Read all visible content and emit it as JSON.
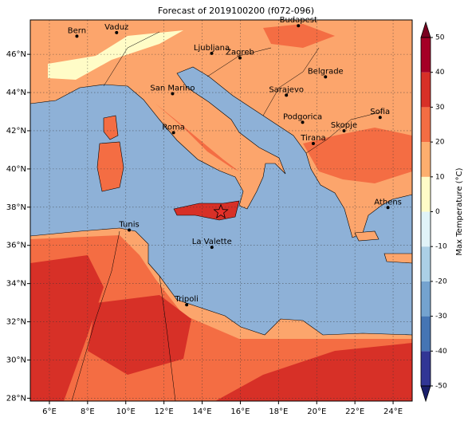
{
  "chart_data": {
    "type": "map",
    "title": "Forecast of 2019100200 (f072-096)",
    "xlim": [
      5,
      25
    ],
    "ylim": [
      27.85,
      47.8
    ],
    "xticks": [
      {
        "value": 6,
        "label": "6°E"
      },
      {
        "value": 8,
        "label": "8°E"
      },
      {
        "value": 10,
        "label": "10°E"
      },
      {
        "value": 12,
        "label": "12°E"
      },
      {
        "value": 14,
        "label": "14°E"
      },
      {
        "value": 16,
        "label": "16°E"
      },
      {
        "value": 18,
        "label": "18°E"
      },
      {
        "value": 20,
        "label": "20°E"
      },
      {
        "value": 22,
        "label": "22°E"
      },
      {
        "value": 24,
        "label": "24°E"
      }
    ],
    "yticks": [
      {
        "value": 28,
        "label": "28°N"
      },
      {
        "value": 30,
        "label": "30°N"
      },
      {
        "value": 32,
        "label": "32°N"
      },
      {
        "value": 34,
        "label": "34°N"
      },
      {
        "value": 36,
        "label": "36°N"
      },
      {
        "value": 38,
        "label": "38°N"
      },
      {
        "value": 40,
        "label": "40°N"
      },
      {
        "value": 42,
        "label": "42°N"
      },
      {
        "value": 44,
        "label": "44°N"
      },
      {
        "value": 46,
        "label": "46°N"
      }
    ],
    "grid": true,
    "cities": [
      {
        "name": "Bern",
        "lon": 7.44,
        "lat": 46.95
      },
      {
        "name": "Vaduz",
        "lon": 9.52,
        "lat": 47.14
      },
      {
        "name": "Budapest",
        "lon": 19.04,
        "lat": 47.5
      },
      {
        "name": "Ljubljana",
        "lon": 14.5,
        "lat": 46.05
      },
      {
        "name": "Zagreb",
        "lon": 15.98,
        "lat": 45.81
      },
      {
        "name": "Belgrade",
        "lon": 20.46,
        "lat": 44.82
      },
      {
        "name": "San Marino",
        "lon": 12.45,
        "lat": 43.94
      },
      {
        "name": "Sarajevo",
        "lon": 18.41,
        "lat": 43.86
      },
      {
        "name": "Sofia",
        "lon": 23.32,
        "lat": 42.7
      },
      {
        "name": "Podgorica",
        "lon": 19.26,
        "lat": 42.44
      },
      {
        "name": "Skopje",
        "lon": 21.43,
        "lat": 42.0
      },
      {
        "name": "Roma",
        "lon": 12.5,
        "lat": 41.9
      },
      {
        "name": "Tirana",
        "lon": 19.82,
        "lat": 41.33
      },
      {
        "name": "Athens",
        "lon": 23.73,
        "lat": 37.98
      },
      {
        "name": "Tunis",
        "lon": 10.18,
        "lat": 36.8
      },
      {
        "name": "La Valette",
        "lon": 14.51,
        "lat": 35.9
      },
      {
        "name": "Tripoli",
        "lon": 13.19,
        "lat": 32.89
      }
    ],
    "marker": {
      "lon": 14.98,
      "lat": 37.75,
      "color": "#e8302a"
    },
    "colorbar": {
      "label": "Max Temperature (°C)",
      "lim": [
        -50,
        50
      ],
      "ticks": [
        -50,
        -40,
        -30,
        -20,
        -10,
        0,
        10,
        20,
        30,
        40,
        50
      ],
      "colors": [
        "#313695",
        "#4575b4",
        "#74a3cf",
        "#abd0e6",
        "#e0f3f8",
        "#fffcc7",
        "#fdae6e",
        "#f46d43",
        "#d73027",
        "#a50026"
      ],
      "extend_colors": [
        "#1a1f6b",
        "#7a0020"
      ]
    }
  }
}
